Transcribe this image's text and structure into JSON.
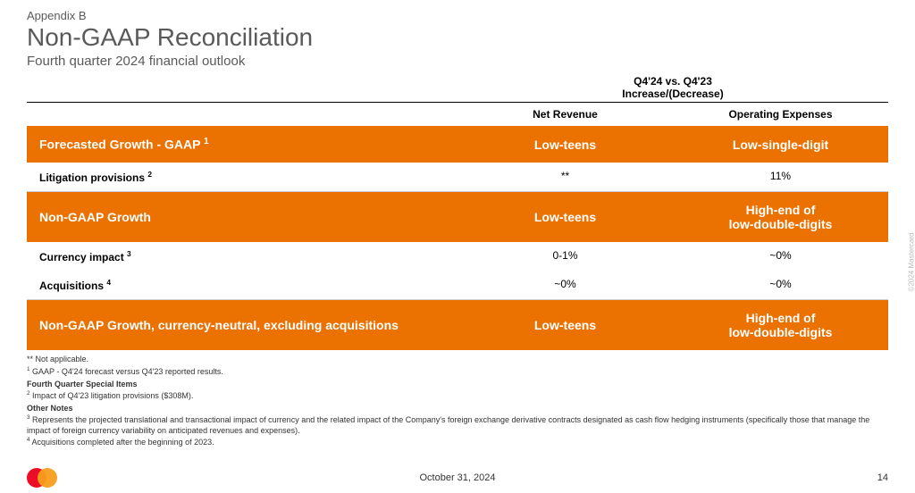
{
  "header": {
    "appendix": "Appendix B",
    "title": "Non-GAAP Reconciliation",
    "subtitle": "Fourth quarter 2024 financial outlook"
  },
  "table": {
    "top_header": "Q4'24 vs. Q4'23\nIncrease/(Decrease)",
    "columns": {
      "col1": "Net Revenue",
      "col2": "Operating Expenses"
    },
    "rows": [
      {
        "type": "orange",
        "label_html": "Forecasted Growth - GAAP <sup>1</sup>",
        "v1": "Low-teens",
        "v2": "Low-single-digit"
      },
      {
        "type": "white",
        "label_html": "Litigation provisions <sup>2</sup>",
        "v1": "**",
        "v2": "11%"
      },
      {
        "type": "orange",
        "label_html": "Non-GAAP Growth",
        "v1": "Low-teens",
        "v2": "High-end of\nlow-double-digits"
      },
      {
        "type": "white-nb",
        "label_html": "Currency impact <sup>3</sup>",
        "v1": "0-1%",
        "v2": "~0%"
      },
      {
        "type": "white",
        "label_html": "Acquisitions <sup>4</sup>",
        "v1": "~0%",
        "v2": "~0%"
      },
      {
        "type": "orange",
        "label_html": "Non-GAAP Growth, currency-neutral, excluding acquisitions",
        "v1": "Low-teens",
        "v2": "High-end of\nlow-double-digits"
      }
    ]
  },
  "footnotes": {
    "star": "** Not applicable.",
    "f1": "GAAP - Q4'24 forecast versus Q4'23 reported results.",
    "section1_title": "Fourth Quarter Special Items",
    "f2": "Impact of Q4'23 litigation provisions ($308M).",
    "section2_title": "Other Notes",
    "f3": "Represents the projected translational and transactional impact of currency and the related impact of the Company's foreign exchange derivative contracts designated as cash flow hedging instruments (specifically those that manage the impact of foreign currency variability on anticipated revenues and expenses).",
    "f4": "Acquisitions completed after the beginning of 2023."
  },
  "footer": {
    "date": "October 31, 2024",
    "page": "14",
    "copyright": "©2024 Mastercard"
  },
  "colors": {
    "orange": "#eb7100",
    "text_gray": "#5a5a5a",
    "logo_red": "#eb001b",
    "logo_yellow": "#f79e1b"
  }
}
